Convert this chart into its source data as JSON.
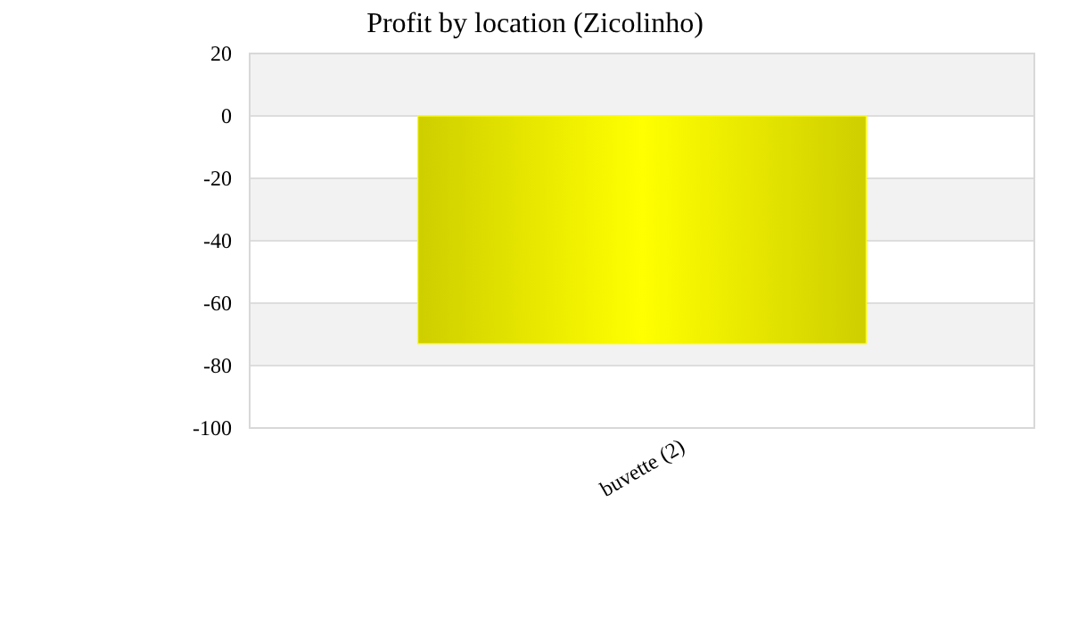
{
  "chart_data": {
    "type": "bar",
    "title": "Profit by location  (Zicolinho)",
    "categories": [
      "buvette (2)"
    ],
    "values": [
      -73
    ],
    "color": "#ffff00",
    "ylim": [
      -100,
      20
    ],
    "yticks": [
      -100,
      -80,
      -60,
      -40,
      -20,
      0,
      20
    ],
    "grid": true
  }
}
